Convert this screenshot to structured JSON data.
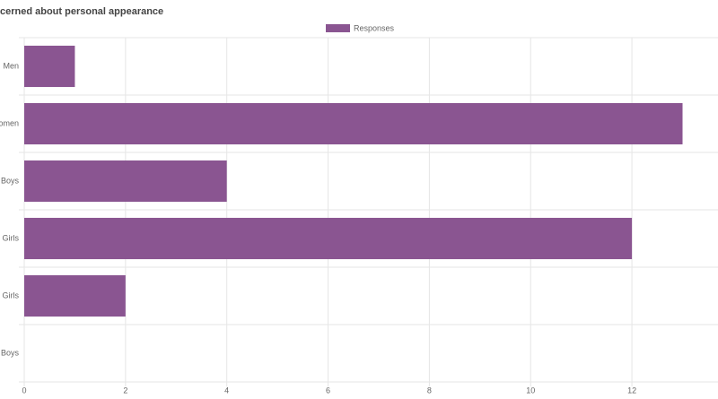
{
  "chart_data": {
    "type": "hbar",
    "title": "cerned about personal appearance",
    "categories": [
      "Men",
      "omen",
      "Boys",
      "Girls",
      "y Girls",
      "Boys"
    ],
    "series": [
      {
        "name": "Responses",
        "color": "#8a5591",
        "values": [
          1,
          13,
          4,
          12,
          2,
          0
        ]
      }
    ],
    "xlim": [
      0,
      13.7
    ],
    "xticks": [
      0,
      2,
      4,
      6,
      8,
      10,
      12
    ],
    "grid": true,
    "legend": "top"
  }
}
